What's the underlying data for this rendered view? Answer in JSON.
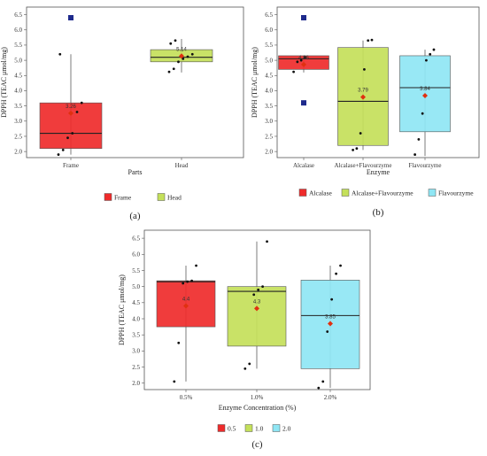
{
  "chart_data": [
    {
      "type": "box",
      "panel_label": "(a)",
      "xlabel": "Parts",
      "ylabel": "DPPH (TEAC μmol/mg)",
      "ylim": [
        1.8,
        6.75
      ],
      "yticks": [
        "2.0",
        "2.5",
        "3.0",
        "3.5",
        "4.0",
        "4.5",
        "5.0",
        "5.5",
        "6.0",
        "6.5"
      ],
      "categories": [
        "Frame",
        "Head"
      ],
      "legend": {
        "position": "bottom",
        "entries": [
          "Frame",
          "Head"
        ]
      },
      "series": [
        {
          "name": "Frame",
          "color": "#ef2b2b",
          "q1": 2.1,
          "median": 2.6,
          "q3": 3.6,
          "whisker_low": 1.9,
          "whisker_high": 5.2,
          "mean": 3.26,
          "mean_label": "3.26",
          "outliers": [
            6.4
          ],
          "points": [
            1.9,
            2.05,
            2.45,
            2.6,
            3.3,
            3.6,
            5.2
          ]
        },
        {
          "name": "Head",
          "color": "#c4e05a",
          "q1": 4.95,
          "median": 5.1,
          "q3": 5.35,
          "whisker_low": 4.6,
          "whisker_high": 5.7,
          "mean": 5.14,
          "mean_label": "5.14",
          "outliers": [],
          "points": [
            4.62,
            4.72,
            4.95,
            5.05,
            5.12,
            5.2,
            5.55,
            5.65
          ]
        }
      ]
    },
    {
      "type": "box",
      "panel_label": "(b)",
      "xlabel": "Enzyme",
      "ylabel": "DPPH (TEAC μmol/mg)",
      "ylim": [
        1.8,
        6.75
      ],
      "yticks": [
        "2.0",
        "2.5",
        "3.0",
        "3.5",
        "4.0",
        "4.5",
        "5.0",
        "5.5",
        "6.0",
        "6.5"
      ],
      "categories": [
        "Alcalase",
        "Alcalase+Flavourzyme",
        "Flavourzyme"
      ],
      "legend": {
        "position": "bottom",
        "entries": [
          "Alcalase",
          "Alcalase+Flavourzyme",
          "Flavourzyme"
        ]
      },
      "series": [
        {
          "name": "Alcalase",
          "color": "#ef2b2b",
          "q1": 4.7,
          "median": 5.05,
          "q3": 5.15,
          "whisker_low": 4.6,
          "whisker_high": 5.15,
          "mean": 4.86,
          "mean_label": "4.86",
          "outliers": [
            6.4,
            3.6
          ],
          "points": [
            4.62,
            4.95,
            5.0,
            5.1
          ]
        },
        {
          "name": "Alcalase+Flavourzyme",
          "color": "#c4e05a",
          "q1": 2.2,
          "median": 3.65,
          "q3": 5.42,
          "whisker_low": 2.05,
          "whisker_high": 5.65,
          "mean": 3.79,
          "mean_label": "3.79",
          "outliers": [],
          "points": [
            2.05,
            2.1,
            2.6,
            4.7,
            5.65,
            5.67
          ]
        },
        {
          "name": "Flavourzyme",
          "color": "#8fe6f4",
          "q1": 2.65,
          "median": 4.1,
          "q3": 5.15,
          "whisker_low": 1.85,
          "whisker_high": 5.35,
          "mean": 3.84,
          "mean_label": "3.84",
          "outliers": [],
          "points": [
            1.9,
            2.4,
            3.25,
            5.0,
            5.2,
            5.35
          ]
        }
      ]
    },
    {
      "type": "box",
      "panel_label": "(c)",
      "xlabel": "Enzyme Concentration (%)",
      "ylabel": "DPPH (TEAC μmol/mg)",
      "ylim": [
        1.8,
        6.75
      ],
      "yticks": [
        "2.0",
        "2.5",
        "3.0",
        "3.5",
        "4.0",
        "4.5",
        "5.0",
        "5.5",
        "6.0",
        "6.5"
      ],
      "categories": [
        "0.5%",
        "1.0%",
        "2.0%"
      ],
      "legend": {
        "position": "bottom",
        "entries": [
          "0.5",
          "1.0",
          "2.0"
        ]
      },
      "series": [
        {
          "name": "0.5",
          "color": "#ef2b2b",
          "q1": 3.75,
          "median": 5.15,
          "q3": 5.18,
          "whisker_low": 2.05,
          "whisker_high": 5.65,
          "mean": 4.4,
          "mean_label": "4.4",
          "outliers": [],
          "points": [
            2.05,
            3.25,
            5.1,
            5.15,
            5.18,
            5.65
          ]
        },
        {
          "name": "1.0",
          "color": "#c4e05a",
          "q1": 3.15,
          "median": 4.85,
          "q3": 5.0,
          "whisker_low": 2.45,
          "whisker_high": 6.4,
          "mean": 4.32,
          "mean_label": "4.3",
          "outliers": [],
          "points": [
            2.45,
            2.6,
            4.75,
            4.9,
            5.0,
            6.4
          ]
        },
        {
          "name": "2.0",
          "color": "#8fe6f4",
          "q1": 2.45,
          "median": 4.1,
          "q3": 5.2,
          "whisker_low": 1.85,
          "whisker_high": 5.65,
          "mean": 3.85,
          "mean_label": "3.85",
          "outliers": [],
          "points": [
            1.85,
            2.05,
            3.6,
            4.6,
            5.4,
            5.65
          ]
        }
      ]
    }
  ]
}
